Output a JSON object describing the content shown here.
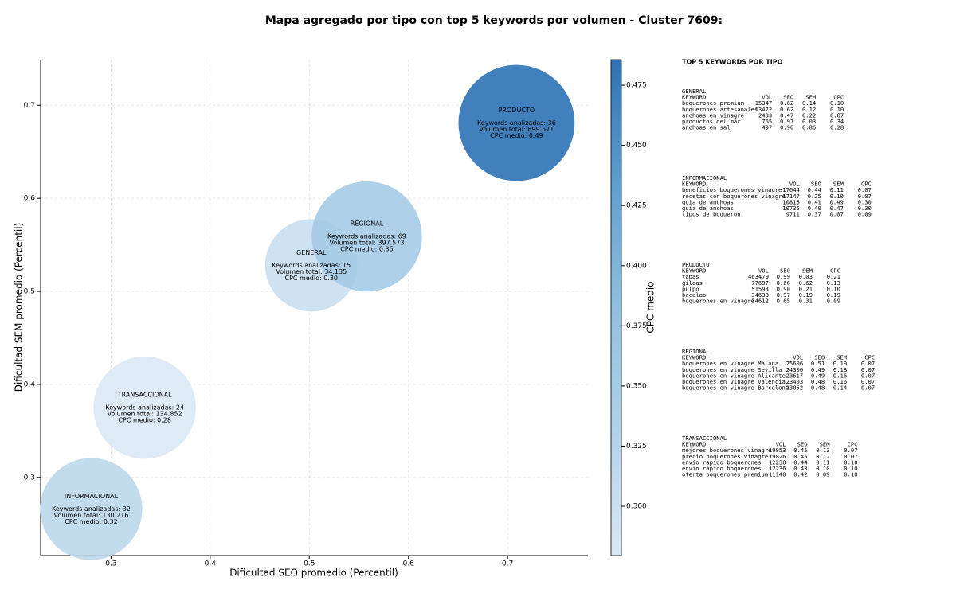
{
  "chart_data": {
    "type": "bubble",
    "title": "Mapa agregado por tipo con top 5 keywords por volumen - Cluster 7609:",
    "xlabel": "Dificultad SEO promedio (Percentil)",
    "ylabel": "Dificultad SEM promedio (Percentil)",
    "colorbar_label": "CPC medio",
    "categories": [
      "GENERAL",
      "INFORMACIONAL",
      "PRODUCTO",
      "REGIONAL",
      "TRANSACCIONAL"
    ],
    "x": [
      0.502,
      0.28,
      0.709,
      0.558,
      0.334
    ],
    "y": [
      0.528,
      0.266,
      0.681,
      0.559,
      0.375
    ],
    "sizes": [
      34135,
      130216,
      899571,
      397573,
      134852
    ],
    "color_values": [
      0.3,
      0.32,
      0.49,
      0.35,
      0.28
    ],
    "annotations": [
      [
        "Keywords analizadas: 15",
        "Volumen total: 34.135",
        "CPC medio: 0.30"
      ],
      [
        "Keywords analizadas: 32",
        "Volumen total: 130.216",
        "CPC medio: 0.32"
      ],
      [
        "Keywords analizadas: 36",
        "Volumen total: 899.571",
        "CPC medio: 0.49"
      ],
      [
        "Keywords analizadas: 69",
        "Volumen total: 397.573",
        "CPC medio: 0.35"
      ],
      [
        "Keywords analizadas: 24",
        "Volumen total: 134.852",
        "CPC medio: 0.28"
      ]
    ],
    "xlim": [
      0.229,
      0.781
    ],
    "ylim": [
      0.216,
      0.749
    ],
    "xticks": [
      0.3,
      0.4,
      0.5,
      0.6,
      0.7
    ],
    "yticks": [
      0.3,
      0.4,
      0.5,
      0.6,
      0.7
    ],
    "clim": [
      0.2795,
      0.4856
    ],
    "cticks": [
      {
        "value": 0.3,
        "label": "0.300"
      },
      {
        "value": 0.325,
        "label": "0.325"
      },
      {
        "value": 0.35,
        "label": "0.350"
      },
      {
        "value": 0.375,
        "label": "0.375"
      },
      {
        "value": 0.4,
        "label": "0.400"
      },
      {
        "value": 0.425,
        "label": "0.425"
      },
      {
        "value": 0.45,
        "label": "0.450"
      },
      {
        "value": 0.475,
        "label": "0.475"
      }
    ],
    "colormap": [
      "#dae8f5",
      "#b2d2e8",
      "#8fc0df",
      "#5d9fd0",
      "#2e72b6"
    ],
    "alpha": 0.9,
    "grid": true
  },
  "side_panel": {
    "title": "TOP 5 KEYWORDS POR TIPO",
    "groups": [
      {
        "name": "GENERAL",
        "header": [
          "KEYWORD",
          "VOL",
          "SEO",
          "SEM",
          "CPC"
        ],
        "rows": [
          [
            "boquerones premium",
            "15347",
            "0.62",
            "0.14",
            "0.10"
          ],
          [
            "boquerones artesanales",
            "13472",
            "0.62",
            "0.12",
            "0.10"
          ],
          [
            "anchoas en vinagre",
            "2433",
            "0.47",
            "0.22",
            "0.07"
          ],
          [
            "productos del mar",
            "755",
            "0.97",
            "0.03",
            "0.34"
          ],
          [
            "anchoas en sal",
            "497",
            "0.90",
            "0.86",
            "0.28"
          ]
        ]
      },
      {
        "name": "INFORMACIONAL",
        "header": [
          "KEYWORD",
          "VOL",
          "SEO",
          "SEM",
          "CPC"
        ],
        "rows": [
          [
            "beneficios boquerones vinagre",
            "17644",
            "0.44",
            "0.11",
            "0.07"
          ],
          [
            "recetas con boquerones vinagre",
            "17147",
            "0.25",
            "0.10",
            "0.07"
          ],
          [
            "guia de anchoas",
            "10816",
            "0.41",
            "0.49",
            "0.30"
          ],
          [
            "guía de anchoas",
            "10735",
            "0.40",
            "0.47",
            "0.30"
          ],
          [
            "tipos de boqueron",
            "9711",
            "0.37",
            "0.07",
            "0.09"
          ]
        ]
      },
      {
        "name": "PRODUCTO",
        "header": [
          "KEYWORD",
          "VOL",
          "SEO",
          "SEM",
          "CPC"
        ],
        "rows": [
          [
            "tapas",
            "463479",
            "0.99",
            "0.03",
            "0.21"
          ],
          [
            "gildas",
            "77697",
            "0.66",
            "0.62",
            "0.13"
          ],
          [
            "pulpo",
            "51593",
            "0.90",
            "0.21",
            "0.10"
          ],
          [
            "bacalao",
            "34633",
            "0.97",
            "0.19",
            "0.19"
          ],
          [
            "boquerones en vinagre",
            "34612",
            "0.65",
            "0.31",
            "0.09"
          ]
        ]
      },
      {
        "name": "REGIONAL",
        "header": [
          "KEYWORD",
          "VOL",
          "SEO",
          "SEM",
          "CPC"
        ],
        "rows": [
          [
            "boquerones en vinagre Málaga",
            "25606",
            "0.51",
            "0.19",
            "0.07"
          ],
          [
            "boquerones en vinagre Sevilla",
            "24300",
            "0.49",
            "0.18",
            "0.07"
          ],
          [
            "boquerones en vinagre Alicante",
            "23617",
            "0.49",
            "0.16",
            "0.07"
          ],
          [
            "boquerones en vinagre Valencia",
            "23403",
            "0.48",
            "0.16",
            "0.07"
          ],
          [
            "boquerones en vinagre Barcelona",
            "23052",
            "0.48",
            "0.14",
            "0.07"
          ]
        ]
      },
      {
        "name": "TRANSACCIONAL",
        "header": [
          "KEYWORD",
          "VOL",
          "SEO",
          "SEM",
          "CPC"
        ],
        "rows": [
          [
            "mejores boquerones vinagre",
            "19853",
            "0.45",
            "0.13",
            "0.07"
          ],
          [
            "precio boquerones vinagre",
            "19826",
            "0.45",
            "0.12",
            "0.07"
          ],
          [
            "envio rapido boquerones",
            "12238",
            "0.44",
            "0.11",
            "0.10"
          ],
          [
            "envío rápido boquerones",
            "12236",
            "0.43",
            "0.10",
            "0.10"
          ],
          [
            "oferta boquerones premium",
            "11140",
            "0.42",
            "0.09",
            "0.10"
          ]
        ]
      }
    ]
  }
}
